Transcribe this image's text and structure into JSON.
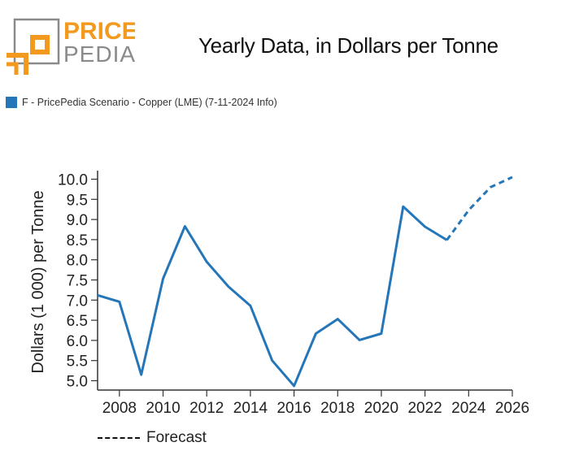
{
  "logo": {
    "word1": "PRICE",
    "word2": "PEDIA",
    "accent_color": "#f39a1e",
    "gray_color": "#8a8a8a"
  },
  "title": "Yearly Data, in Dollars per Tonne",
  "legend": {
    "label": "F - PricePedia Scenario - Copper (LME) (7-11-2024 Info)",
    "color": "#2576b8"
  },
  "forecast_label": "Forecast",
  "chart_data": {
    "type": "line",
    "title": "Yearly Data, in Dollars per Tonne",
    "xlabel": "",
    "ylabel": "Dollars (1 000) per Tonne",
    "xlim": [
      2007,
      2026
    ],
    "ylim": [
      4.8,
      10.2
    ],
    "x_ticks": [
      2008,
      2010,
      2012,
      2014,
      2016,
      2018,
      2020,
      2022,
      2024,
      2026
    ],
    "y_ticks": [
      5.0,
      5.5,
      6.0,
      6.5,
      7.0,
      7.5,
      8.0,
      8.5,
      9.0,
      9.5,
      10.0
    ],
    "grid": false,
    "series": [
      {
        "name": "F - PricePedia Scenario - Copper (LME) (7-11-2024 Info)",
        "color": "#2576b8",
        "style": "solid",
        "x": [
          2007,
          2008,
          2009,
          2010,
          2011,
          2012,
          2013,
          2014,
          2015,
          2016,
          2017,
          2018,
          2019,
          2020,
          2021,
          2022,
          2023
        ],
        "y": [
          7.12,
          6.96,
          5.15,
          7.53,
          8.83,
          7.95,
          7.33,
          6.86,
          5.5,
          4.87,
          6.17,
          6.53,
          6.01,
          6.17,
          9.32,
          8.82,
          8.49
        ]
      },
      {
        "name": "Forecast",
        "color": "#2576b8",
        "style": "dashed",
        "x": [
          2023,
          2024,
          2025,
          2026
        ],
        "y": [
          8.49,
          9.23,
          9.8,
          10.05
        ]
      }
    ]
  }
}
